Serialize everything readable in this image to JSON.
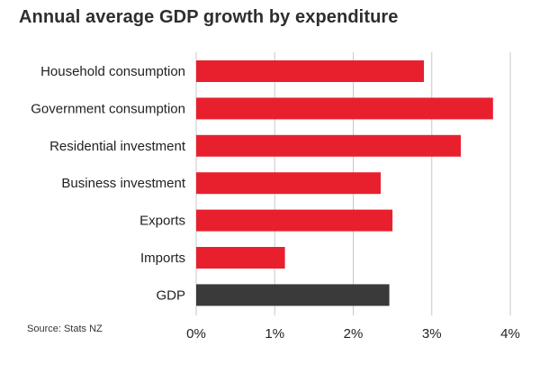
{
  "chart_data": {
    "type": "bar",
    "orientation": "horizontal",
    "title": "Annual average GDP growth by expenditure",
    "source": "Source: Stats NZ",
    "categories": [
      "Household consumption",
      "Government consumption",
      "Residential investment",
      "Business investment",
      "Exports",
      "Imports",
      "GDP"
    ],
    "values": [
      2.9,
      3.78,
      3.37,
      2.35,
      2.5,
      1.13,
      2.46
    ],
    "unit": "%",
    "xlim": [
      0,
      4
    ],
    "xticks": [
      0,
      1,
      2,
      3,
      4
    ],
    "xtick_labels": [
      "0%",
      "1%",
      "2%",
      "3%",
      "4%"
    ],
    "grid": true,
    "legend": "none",
    "colors": {
      "components": "#e8202e",
      "GDP": "#3a3a3a",
      "grid": "#c8c8c8"
    }
  }
}
